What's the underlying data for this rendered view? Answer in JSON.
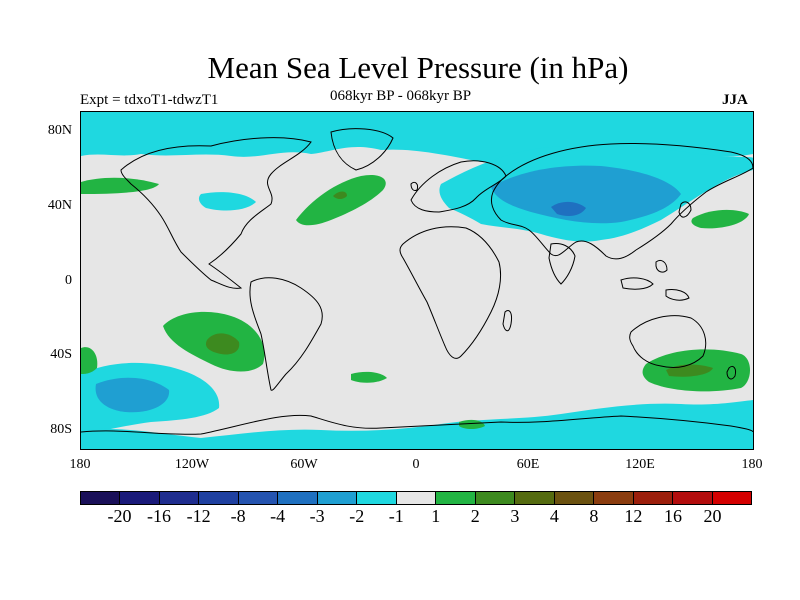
{
  "title": "Mean Sea Level Pressure (in hPa)",
  "left_label": "Expt = tdxoT1-tdwzT1",
  "center_label": "068kyr BP - 068kyr BP",
  "right_label": "JJA",
  "y_ticks": [
    "80N",
    "40N",
    "0",
    "40S",
    "80S"
  ],
  "x_ticks": [
    "180",
    "120W",
    "60W",
    "0",
    "60E",
    "120E",
    "180"
  ],
  "colorbar": {
    "colors": [
      "#1a1059",
      "#1a1a7a",
      "#1f2d8f",
      "#1f40a0",
      "#2554b0",
      "#1f70c0",
      "#1f9fd2",
      "#1fd8e0",
      "#e6e6e6",
      "#22b443",
      "#3d8a1f",
      "#556b10",
      "#6b5210",
      "#8b3d0f",
      "#9c1f0c",
      "#b30d0d",
      "#d40000"
    ],
    "labels": [
      "-20",
      "-16",
      "-12",
      "-8",
      "-4",
      "-3",
      "-2",
      "-1",
      "1",
      "2",
      "3",
      "4",
      "8",
      "12",
      "16",
      "20"
    ]
  },
  "map_colors": {
    "background": "#e6e6e6",
    "neg1": "#1fd8e0",
    "neg2": "#1f9fd2",
    "neg3": "#1f70c0",
    "neg4": "#2554b0",
    "pos1": "#22b443",
    "pos2": "#3d8a1f",
    "pos3": "#556b10"
  }
}
